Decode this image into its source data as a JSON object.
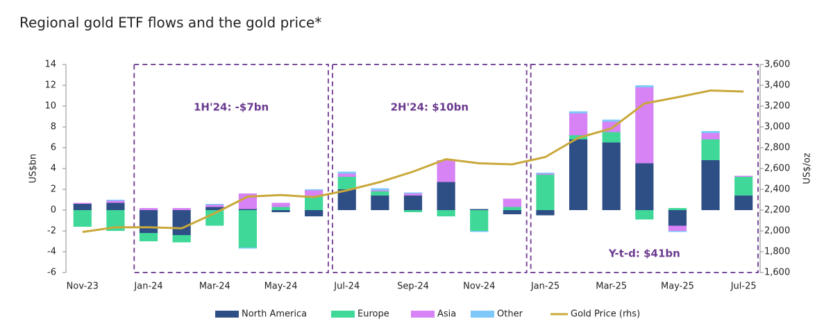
{
  "chart_data": {
    "type": "bar",
    "title": "Regional gold ETF flows and the gold price*",
    "y_label": "US$bn",
    "y2_label": "US$/oz",
    "categories": [
      "Nov-23",
      null,
      "Jan-24",
      null,
      "Mar-24",
      null,
      "May-24",
      null,
      "Jul-24",
      null,
      "Sep-24",
      null,
      "Nov-24",
      null,
      "Jan-25",
      null,
      "Mar-25",
      null,
      "May-25",
      null,
      "Jul-25"
    ],
    "series": [
      {
        "name": "North America",
        "color": "#2e4f86",
        "values": [
          0.6,
          0.7,
          -2.2,
          -2.4,
          0.3,
          0.1,
          -0.2,
          -0.6,
          2.0,
          1.4,
          1.4,
          2.7,
          0.1,
          -0.4,
          -0.5,
          6.8,
          6.5,
          4.5,
          -1.5,
          4.8,
          1.4
        ]
      },
      {
        "name": "Europe",
        "color": "#3fd898",
        "values": [
          -1.6,
          -2.0,
          -0.8,
          -0.7,
          -1.5,
          -3.6,
          0.3,
          1.3,
          1.2,
          0.4,
          -0.2,
          -0.6,
          -2.0,
          0.3,
          3.4,
          0.4,
          1.0,
          -0.9,
          0.2,
          2.0,
          1.8
        ]
      },
      {
        "name": "Asia",
        "color": "#d783f5",
        "values": [
          0.1,
          0.2,
          0.2,
          0.2,
          0.2,
          1.5,
          0.4,
          0.6,
          0.3,
          0.1,
          0.2,
          2.1,
          0.0,
          0.8,
          0.1,
          2.1,
          1.0,
          7.3,
          -0.5,
          0.6,
          0.1
        ]
      },
      {
        "name": "Other",
        "color": "#7cc8f8",
        "values": [
          0.0,
          0.1,
          0.0,
          0.0,
          0.1,
          -0.1,
          0.0,
          0.1,
          0.2,
          0.2,
          0.1,
          0.0,
          -0.1,
          0.0,
          0.1,
          0.2,
          0.2,
          0.2,
          -0.1,
          0.2,
          0.0
        ]
      },
      {
        "name": "Gold Price (rhs)",
        "color": "#c9a83a",
        "axis": "y2",
        "type": "line",
        "values": [
          1990,
          2035,
          2035,
          2025,
          2170,
          2330,
          2345,
          2325,
          2390,
          2470,
          2570,
          2690,
          2650,
          2640,
          2710,
          2895,
          2985,
          3225,
          3285,
          3350,
          3340
        ]
      }
    ],
    "ylim": [
      -6,
      14
    ],
    "yticks": [
      -6,
      -4,
      -2,
      0,
      2,
      4,
      6,
      8,
      10,
      12,
      14
    ],
    "y2lim": [
      1600,
      3600
    ],
    "y2ticks": [
      {
        "value": 1600,
        "label": "1,600"
      },
      {
        "value": 1800,
        "label": "1,800"
      },
      {
        "value": 2000,
        "label": "2,000"
      },
      {
        "value": 2200,
        "label": "2,200"
      },
      {
        "value": 2400,
        "label": "2,400"
      },
      {
        "value": 2600,
        "label": "2,600"
      },
      {
        "value": 2800,
        "label": "2,800"
      },
      {
        "value": 3000,
        "label": "3,000"
      },
      {
        "value": 3200,
        "label": "3,200"
      },
      {
        "value": 3400,
        "label": "3,400"
      },
      {
        "value": 3600,
        "label": "3,600"
      }
    ],
    "annotations": [
      {
        "text": "1H'24: -$7bn"
      },
      {
        "text": "2H'24: $10bn"
      },
      {
        "text": "Y-t-d: $41bn"
      }
    ]
  }
}
